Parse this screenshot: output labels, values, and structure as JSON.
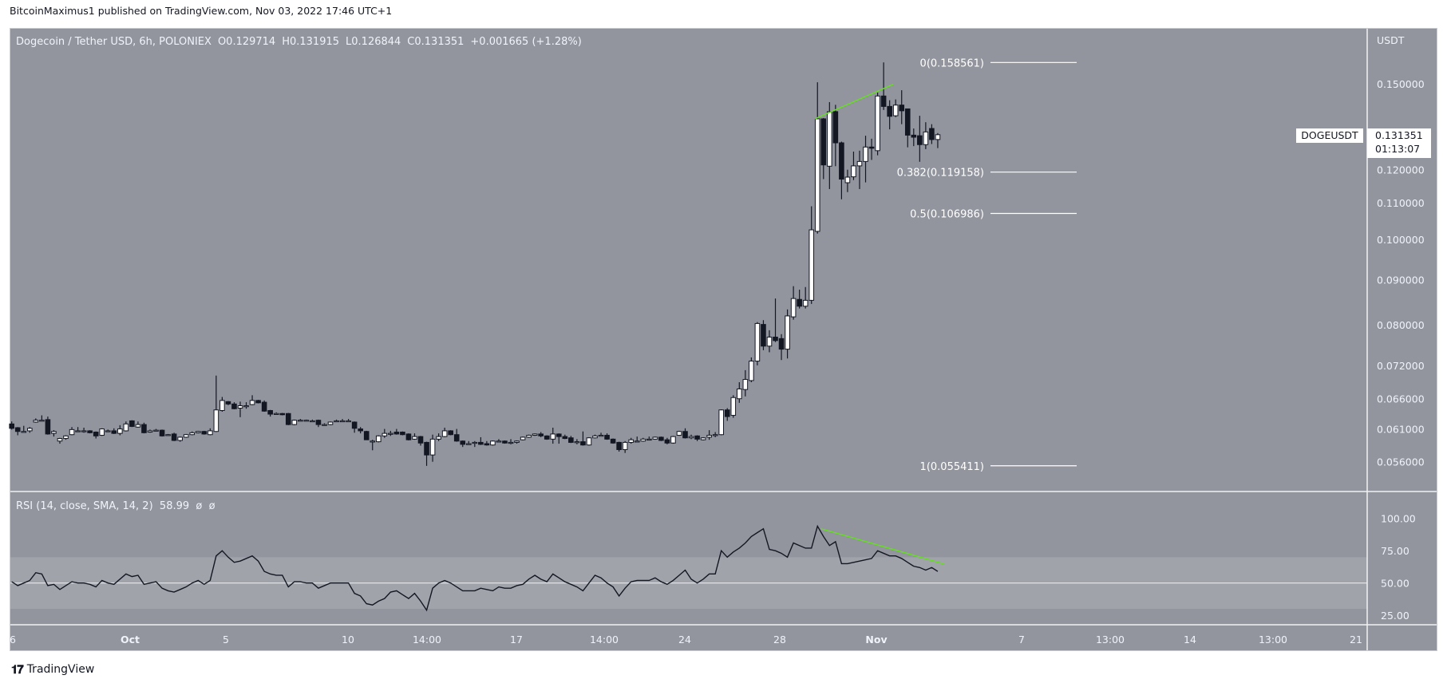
{
  "publish_line": "BitcoinMaximus1 published on TradingView.com, Nov 03, 2022 17:46 UTC+1",
  "footer": {
    "brand": "TradingView",
    "logo_text": "TV"
  },
  "legend": {
    "title": "Dogecoin / Tether USD, 6h, POLONIEX",
    "o_label": "O",
    "o": "0.129714",
    "h_label": "H",
    "h": "0.131915",
    "l_label": "L",
    "l": "0.126844",
    "c_label": "C",
    "c": "0.131351",
    "change": "+0.001665 (+1.28%)"
  },
  "rsi_legend": {
    "title": "RSI (14, close, SMA, 14, 2)",
    "value": "58.99",
    "extra": "ø  ø"
  },
  "price_axis": {
    "currency": "USDT"
  },
  "symbol_label": "DOGEUSDT",
  "last_price": {
    "price": "0.131351",
    "countdown": "01:13:07"
  },
  "colors": {
    "background": "#93959e",
    "band": "#a1a3ab",
    "up": "#ffffff",
    "down": "#131722",
    "trendline": "#66dd22",
    "text": "#f0f3fa"
  },
  "chart_data": [
    {
      "type": "candlestick",
      "title": "Dogecoin / Tether USD, 6h, POLONIEX",
      "start": "2022-09-26 00:00",
      "interval_hours": 6,
      "y_scale": "log",
      "ylim": [
        0.0535,
        0.162
      ],
      "yticks": [
        "0.150000",
        "0.120000",
        "0.110000",
        "0.100000",
        "0.090000",
        "0.080000",
        "0.072000",
        "0.066000",
        "0.061000",
        "0.056000"
      ],
      "xticks": [
        "6",
        "Oct",
        "5",
        "10",
        "14:00",
        "17",
        "14:00",
        "24",
        "28",
        "Nov",
        "7",
        "13:00",
        "14",
        "13:00",
        "21"
      ],
      "grid": false,
      "ohlc": [
        [
          0.0618,
          0.0622,
          0.0609,
          0.0611
        ],
        [
          0.0612,
          0.0613,
          0.06,
          0.0606
        ],
        [
          0.0606,
          0.0615,
          0.0605,
          0.0606
        ],
        [
          0.0607,
          0.0613,
          0.0604,
          0.0611
        ],
        [
          0.0621,
          0.0627,
          0.062,
          0.0624
        ],
        [
          0.0624,
          0.0632,
          0.0623,
          0.0624
        ],
        [
          0.0625,
          0.063,
          0.0601,
          0.0602
        ],
        [
          0.0603,
          0.0608,
          0.0598,
          0.0606
        ],
        [
          0.0591,
          0.0596,
          0.0587,
          0.0595
        ],
        [
          0.0595,
          0.06,
          0.0593,
          0.0599
        ],
        [
          0.0601,
          0.0613,
          0.06,
          0.0609
        ],
        [
          0.0607,
          0.0613,
          0.0606,
          0.0607
        ],
        [
          0.0607,
          0.0612,
          0.0604,
          0.0607
        ],
        [
          0.0607,
          0.0608,
          0.0603,
          0.0604
        ],
        [
          0.0605,
          0.0606,
          0.0595,
          0.0599
        ],
        [
          0.06,
          0.0611,
          0.0599,
          0.061
        ],
        [
          0.0607,
          0.0609,
          0.0606,
          0.0607
        ],
        [
          0.0607,
          0.0611,
          0.0602,
          0.0603
        ],
        [
          0.0603,
          0.0616,
          0.06,
          0.061
        ],
        [
          0.0607,
          0.0622,
          0.0606,
          0.0618
        ],
        [
          0.0623,
          0.0624,
          0.0613,
          0.0614
        ],
        [
          0.0613,
          0.0622,
          0.0612,
          0.0617
        ],
        [
          0.0617,
          0.062,
          0.0603,
          0.0604
        ],
        [
          0.0605,
          0.0609,
          0.0604,
          0.0607
        ],
        [
          0.0608,
          0.061,
          0.0607,
          0.0608
        ],
        [
          0.0608,
          0.0609,
          0.0598,
          0.0599
        ],
        [
          0.0601,
          0.0602,
          0.06,
          0.0601
        ],
        [
          0.0602,
          0.0604,
          0.0591,
          0.0592
        ],
        [
          0.0592,
          0.0598,
          0.059,
          0.0597
        ],
        [
          0.0597,
          0.0602,
          0.0596,
          0.0601
        ],
        [
          0.0601,
          0.0606,
          0.06,
          0.0604
        ],
        [
          0.0604,
          0.0607,
          0.0603,
          0.0606
        ],
        [
          0.0606,
          0.0607,
          0.0601,
          0.0602
        ],
        [
          0.0601,
          0.0611,
          0.06,
          0.0607
        ],
        [
          0.0606,
          0.0701,
          0.0605,
          0.0641
        ],
        [
          0.064,
          0.0663,
          0.0638,
          0.0657
        ],
        [
          0.0655,
          0.0656,
          0.0649,
          0.0651
        ],
        [
          0.0651,
          0.0654,
          0.0642,
          0.0643
        ],
        [
          0.0644,
          0.0655,
          0.0629,
          0.0648
        ],
        [
          0.0648,
          0.0654,
          0.0643,
          0.0648
        ],
        [
          0.065,
          0.0666,
          0.0649,
          0.0657
        ],
        [
          0.0657,
          0.0658,
          0.0652,
          0.0653
        ],
        [
          0.0654,
          0.0657,
          0.0638,
          0.0639
        ],
        [
          0.064,
          0.0641,
          0.063,
          0.0634
        ],
        [
          0.0635,
          0.0637,
          0.0634,
          0.0635
        ],
        [
          0.0635,
          0.0636,
          0.0632,
          0.0633
        ],
        [
          0.0635,
          0.0636,
          0.0616,
          0.0617
        ],
        [
          0.0617,
          0.0625,
          0.0616,
          0.0624
        ],
        [
          0.0624,
          0.0626,
          0.0623,
          0.0624
        ],
        [
          0.0624,
          0.0625,
          0.0623,
          0.0624
        ],
        [
          0.0623,
          0.0625,
          0.0622,
          0.0623
        ],
        [
          0.0624,
          0.0625,
          0.0613,
          0.0617
        ],
        [
          0.0617,
          0.0619,
          0.0615,
          0.0617
        ],
        [
          0.0617,
          0.0622,
          0.0616,
          0.0621
        ],
        [
          0.0623,
          0.0625,
          0.0622,
          0.0623
        ],
        [
          0.0623,
          0.0626,
          0.0622,
          0.0623
        ],
        [
          0.0623,
          0.0626,
          0.0622,
          0.0623
        ],
        [
          0.0621,
          0.0622,
          0.0604,
          0.0611
        ],
        [
          0.061,
          0.0613,
          0.0603,
          0.0607
        ],
        [
          0.0606,
          0.0607,
          0.0593,
          0.0593
        ],
        [
          0.0591,
          0.0593,
          0.0577,
          0.0591
        ],
        [
          0.059,
          0.06,
          0.0589,
          0.0599
        ],
        [
          0.0599,
          0.061,
          0.0596,
          0.0603
        ],
        [
          0.0603,
          0.0607,
          0.0599,
          0.0603
        ],
        [
          0.0605,
          0.061,
          0.0601,
          0.0602
        ],
        [
          0.0605,
          0.0606,
          0.06,
          0.0601
        ],
        [
          0.0602,
          0.0603,
          0.0592,
          0.0593
        ],
        [
          0.0594,
          0.0603,
          0.0593,
          0.0598
        ],
        [
          0.0598,
          0.0599,
          0.0584,
          0.0588
        ],
        [
          0.0589,
          0.059,
          0.0554,
          0.057
        ],
        [
          0.057,
          0.0601,
          0.056,
          0.0594
        ],
        [
          0.0594,
          0.0603,
          0.0591,
          0.0598
        ],
        [
          0.0598,
          0.0612,
          0.0597,
          0.0607
        ],
        [
          0.0607,
          0.0608,
          0.06,
          0.0601
        ],
        [
          0.0601,
          0.061,
          0.059,
          0.0591
        ],
        [
          0.0591,
          0.0592,
          0.0582,
          0.0586
        ],
        [
          0.0587,
          0.0591,
          0.0586,
          0.0587
        ],
        [
          0.0589,
          0.0591,
          0.0582,
          0.0589
        ],
        [
          0.0589,
          0.0597,
          0.0585,
          0.0586
        ],
        [
          0.0587,
          0.0591,
          0.0584,
          0.0585
        ],
        [
          0.0585,
          0.0592,
          0.0584,
          0.0591
        ],
        [
          0.0591,
          0.0594,
          0.059,
          0.0591
        ],
        [
          0.0591,
          0.0592,
          0.0587,
          0.0588
        ],
        [
          0.0589,
          0.0594,
          0.0586,
          0.0589
        ],
        [
          0.0589,
          0.0592,
          0.0587,
          0.0591
        ],
        [
          0.0593,
          0.0598,
          0.0592,
          0.0597
        ],
        [
          0.0597,
          0.0601,
          0.0596,
          0.06
        ],
        [
          0.06,
          0.0603,
          0.0599,
          0.0602
        ],
        [
          0.0602,
          0.0605,
          0.0597,
          0.0599
        ],
        [
          0.0599,
          0.06,
          0.0593,
          0.0594
        ],
        [
          0.0594,
          0.0612,
          0.0587,
          0.0602
        ],
        [
          0.0602,
          0.0603,
          0.0587,
          0.0598
        ],
        [
          0.0598,
          0.0601,
          0.0594,
          0.0595
        ],
        [
          0.0596,
          0.0599,
          0.0588,
          0.0589
        ],
        [
          0.059,
          0.0594,
          0.0586,
          0.059
        ],
        [
          0.059,
          0.0606,
          0.0584,
          0.0585
        ],
        [
          0.0585,
          0.0597,
          0.0584,
          0.0596
        ],
        [
          0.0596,
          0.0601,
          0.0595,
          0.0599
        ],
        [
          0.06,
          0.0604,
          0.0599,
          0.06
        ],
        [
          0.06,
          0.0603,
          0.0593,
          0.0594
        ],
        [
          0.0594,
          0.0595,
          0.0587,
          0.0588
        ],
        [
          0.0589,
          0.059,
          0.0575,
          0.0578
        ],
        [
          0.0578,
          0.0591,
          0.0573,
          0.0589
        ],
        [
          0.0589,
          0.0596,
          0.0587,
          0.0593
        ],
        [
          0.0591,
          0.0598,
          0.059,
          0.0591
        ],
        [
          0.0591,
          0.0596,
          0.059,
          0.0594
        ],
        [
          0.0594,
          0.0598,
          0.0593,
          0.0594
        ],
        [
          0.0594,
          0.0598,
          0.0593,
          0.0597
        ],
        [
          0.0597,
          0.0598,
          0.0591,
          0.0592
        ],
        [
          0.0593,
          0.0596,
          0.0586,
          0.0588
        ],
        [
          0.0588,
          0.0599,
          0.0587,
          0.0598
        ],
        [
          0.06,
          0.0607,
          0.0599,
          0.0606
        ],
        [
          0.0606,
          0.0611,
          0.0595,
          0.0596
        ],
        [
          0.0596,
          0.0601,
          0.0594,
          0.0598
        ],
        [
          0.0599,
          0.06,
          0.0591,
          0.0594
        ],
        [
          0.0593,
          0.0597,
          0.0592,
          0.0596
        ],
        [
          0.0597,
          0.0608,
          0.0593,
          0.06
        ],
        [
          0.0601,
          0.0605,
          0.0597,
          0.0601
        ],
        [
          0.0601,
          0.0642,
          0.06,
          0.0641
        ],
        [
          0.0641,
          0.0644,
          0.0623,
          0.063
        ],
        [
          0.0632,
          0.0666,
          0.0628,
          0.0662
        ],
        [
          0.066,
          0.0689,
          0.0653,
          0.0677
        ],
        [
          0.0676,
          0.0711,
          0.0664,
          0.0694
        ],
        [
          0.0692,
          0.0735,
          0.0689,
          0.0728
        ],
        [
          0.0728,
          0.0806,
          0.072,
          0.0803
        ],
        [
          0.0801,
          0.081,
          0.0749,
          0.0757
        ],
        [
          0.0757,
          0.0789,
          0.0745,
          0.0775
        ],
        [
          0.0775,
          0.0857,
          0.0765,
          0.0768
        ],
        [
          0.0772,
          0.0781,
          0.073,
          0.0751
        ],
        [
          0.0751,
          0.0833,
          0.0733,
          0.0819
        ],
        [
          0.0817,
          0.0885,
          0.0811,
          0.0857
        ],
        [
          0.0855,
          0.0877,
          0.0835,
          0.084
        ],
        [
          0.084,
          0.0883,
          0.0835,
          0.0853
        ],
        [
          0.0853,
          0.109,
          0.0845,
          0.1025
        ],
        [
          0.1021,
          0.1506,
          0.1015,
          0.1369
        ],
        [
          0.1369,
          0.1372,
          0.117,
          0.1214
        ],
        [
          0.121,
          0.143,
          0.114,
          0.1395
        ],
        [
          0.1395,
          0.142,
          0.121,
          0.1286
        ],
        [
          0.1286,
          0.129,
          0.111,
          0.117
        ],
        [
          0.1159,
          0.1199,
          0.1131,
          0.1176
        ],
        [
          0.1177,
          0.1257,
          0.1167,
          0.1211
        ],
        [
          0.1211,
          0.126,
          0.114,
          0.1225
        ],
        [
          0.1225,
          0.131,
          0.116,
          0.1272
        ],
        [
          0.1272,
          0.13,
          0.123,
          0.1268
        ],
        [
          0.126,
          0.1466,
          0.1245,
          0.1453
        ],
        [
          0.1453,
          0.1586,
          0.1401,
          0.1414
        ],
        [
          0.1414,
          0.1437,
          0.1332,
          0.1378
        ],
        [
          0.138,
          0.144,
          0.1375,
          0.1419
        ],
        [
          0.1419,
          0.1475,
          0.135,
          0.1398
        ],
        [
          0.1405,
          0.1405,
          0.1271,
          0.1312
        ],
        [
          0.1312,
          0.1335,
          0.1275,
          0.1305
        ],
        [
          0.131,
          0.138,
          0.1224,
          0.128
        ],
        [
          0.128,
          0.1357,
          0.1265,
          0.1323
        ],
        [
          0.1335,
          0.135,
          0.1282,
          0.1297
        ],
        [
          0.129714,
          0.131915,
          0.126844,
          0.131351
        ]
      ],
      "fib_levels": [
        {
          "label": "0(0.158561)",
          "price": 0.158561
        },
        {
          "label": "0.382(0.119158)",
          "price": 0.119158
        },
        {
          "label": "0.5(0.106986)",
          "price": 0.106986
        },
        {
          "label": "1(0.055411)",
          "price": 0.055411
        }
      ],
      "trendline": {
        "start": {
          "time": "2022-10-29 09:36",
          "price": 0.1369
        },
        "end": {
          "time": "2022-11-01 15:36",
          "price": 0.1498
        }
      }
    },
    {
      "type": "line",
      "title": "RSI (14, close, SMA, 14, 2)",
      "start": "2022-09-26 00:00",
      "interval_hours": 6,
      "ylim": [
        14,
        110
      ],
      "yticks": [
        "100.00",
        "75.00",
        "50.00",
        "25.00"
      ],
      "band": [
        30,
        70
      ],
      "midline": 50,
      "values": [
        51,
        48,
        50,
        52,
        58,
        57,
        48,
        49,
        45,
        48,
        51,
        50,
        50,
        49,
        47,
        52,
        50,
        49,
        53,
        57,
        55,
        56,
        49,
        50,
        51,
        46,
        44,
        43,
        45,
        47,
        50,
        52,
        49,
        52,
        71,
        75,
        70,
        66,
        67,
        69,
        71,
        67,
        59,
        57,
        56,
        56,
        47,
        51,
        51,
        50,
        50,
        46,
        48,
        50,
        50,
        50,
        50,
        42,
        40,
        34,
        33,
        36,
        38,
        43,
        44,
        41,
        38,
        42,
        36,
        29,
        46,
        50,
        52,
        50,
        47,
        44,
        44,
        44,
        46,
        45,
        44,
        47,
        46,
        46,
        48,
        49,
        53,
        56,
        53,
        51,
        57,
        54,
        51,
        49,
        47,
        44,
        50,
        56,
        54,
        50,
        47,
        40,
        46,
        51,
        52,
        52,
        52,
        54,
        51,
        49,
        52,
        56,
        60,
        53,
        50,
        53,
        57,
        57,
        75,
        70,
        74,
        77,
        81,
        86,
        89,
        92,
        76,
        75,
        73,
        70,
        81,
        79,
        77,
        77,
        94,
        86,
        79,
        82,
        65,
        65,
        66,
        67,
        68,
        69,
        75,
        73,
        71,
        71,
        69,
        66,
        63,
        62,
        60,
        62,
        58.99
      ],
      "trendline": {
        "start": {
          "time": "2022-10-29 15:36",
          "value": 92
        },
        "end": {
          "time": "2022-11-03 18:00",
          "value": 64.8
        }
      }
    }
  ]
}
